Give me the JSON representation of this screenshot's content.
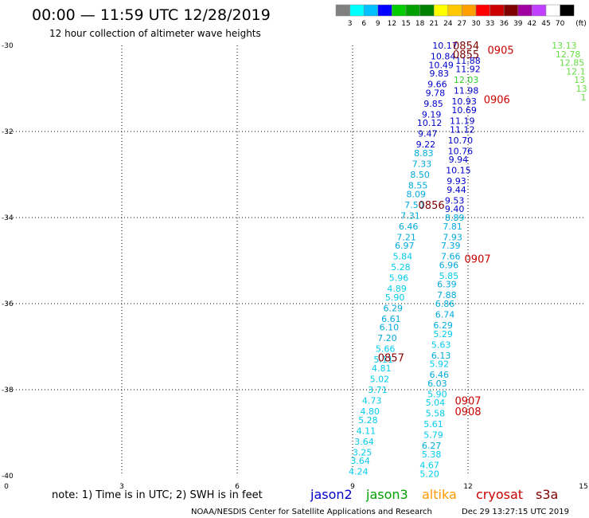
{
  "header": {
    "title": "00:00 — 11:59 UTC 12/28/2019",
    "subtitle": "12 hour collection of altimeter wave heights"
  },
  "colorbar": {
    "units": "(ft)",
    "labels": [
      "3",
      "6",
      "9",
      "12",
      "15",
      "18",
      "21",
      "24",
      "27",
      "30",
      "33",
      "36",
      "39",
      "42",
      "45",
      "70"
    ],
    "colors": [
      "#808080",
      "#00ffff",
      "#00bfff",
      "#0000ff",
      "#00cc00",
      "#00a000",
      "#008000",
      "#ffff00",
      "#ffc800",
      "#ffa000",
      "#ff0000",
      "#cc0000",
      "#800000",
      "#a000a0",
      "#c040ff",
      "#ffffff",
      "#000000"
    ]
  },
  "footer": {
    "note": "note: 1) Time is in UTC; 2) SWH is in feet",
    "credit": "NOAA/NESDIS Center for Satellite Applications and Research",
    "timestamp": "Dec 29 13:27:15 UTC 2019",
    "legend": [
      {
        "name": "jason2",
        "color": "#0000cc"
      },
      {
        "name": "jason3",
        "color": "#00a000"
      },
      {
        "name": "altika",
        "color": "#ff9900"
      },
      {
        "name": "cryosat",
        "color": "#cc0000"
      },
      {
        "name": "s3a",
        "color": "#800000"
      }
    ]
  },
  "chart_data": {
    "type": "scatter",
    "xlim": [
      0,
      15
    ],
    "ylim": [
      -40,
      -30
    ],
    "xticks": [
      "0",
      "3",
      "6",
      "9",
      "12",
      "15"
    ],
    "yticks": [
      "-30",
      "-32",
      "-34",
      "-36",
      "-38",
      "-40"
    ],
    "grid": true,
    "series": [
      {
        "name": "track-west",
        "points": [
          {
            "x": 11.4,
            "y": -30.0,
            "v": "10.17",
            "c": "#0000cc"
          },
          {
            "x": 11.35,
            "y": -30.25,
            "v": "10.84",
            "c": "#0000cc"
          },
          {
            "x": 11.3,
            "y": -30.45,
            "v": "10.49",
            "c": "#0000cc"
          },
          {
            "x": 11.25,
            "y": -30.65,
            "v": "9.83",
            "c": "#0000cc"
          },
          {
            "x": 11.2,
            "y": -30.9,
            "v": "9.66",
            "c": "#0000cc"
          },
          {
            "x": 11.15,
            "y": -31.1,
            "v": "9.78",
            "c": "#0000cc"
          },
          {
            "x": 11.1,
            "y": -31.35,
            "v": "9.85",
            "c": "#0000cc"
          },
          {
            "x": 11.05,
            "y": -31.6,
            "v": "9.19",
            "c": "#0000cc"
          },
          {
            "x": 11.0,
            "y": -31.8,
            "v": "10.12",
            "c": "#0000cc"
          },
          {
            "x": 10.95,
            "y": -32.05,
            "v": "9.47",
            "c": "#0000cc"
          },
          {
            "x": 10.9,
            "y": -32.3,
            "v": "9.22",
            "c": "#0000cc"
          },
          {
            "x": 10.85,
            "y": -32.5,
            "v": "8.83",
            "c": "#00aadd"
          },
          {
            "x": 10.8,
            "y": -32.75,
            "v": "7.33",
            "c": "#00aadd"
          },
          {
            "x": 10.75,
            "y": -33.0,
            "v": "8.50",
            "c": "#00aadd"
          },
          {
            "x": 10.7,
            "y": -33.25,
            "v": "8.55",
            "c": "#00aadd"
          },
          {
            "x": 10.65,
            "y": -33.45,
            "v": "8.09",
            "c": "#00aadd"
          },
          {
            "x": 10.6,
            "y": -33.7,
            "v": "7.50",
            "c": "#00aadd"
          },
          {
            "x": 10.5,
            "y": -33.95,
            "v": "7.31",
            "c": "#00aadd"
          },
          {
            "x": 10.45,
            "y": -34.2,
            "v": "6.46",
            "c": "#00aadd"
          },
          {
            "x": 10.4,
            "y": -34.45,
            "v": "7.21",
            "c": "#00aadd"
          },
          {
            "x": 10.35,
            "y": -34.65,
            "v": "6.97",
            "c": "#00aadd"
          },
          {
            "x": 10.3,
            "y": -34.9,
            "v": "5.84",
            "c": "#00ccee"
          },
          {
            "x": 10.25,
            "y": -35.15,
            "v": "5.28",
            "c": "#00ccee"
          },
          {
            "x": 10.2,
            "y": -35.4,
            "v": "5.96",
            "c": "#00ccee"
          },
          {
            "x": 10.15,
            "y": -35.65,
            "v": "4.89",
            "c": "#00ccee"
          },
          {
            "x": 10.1,
            "y": -35.85,
            "v": "5.90",
            "c": "#00ccee"
          },
          {
            "x": 10.05,
            "y": -36.1,
            "v": "6.29",
            "c": "#00aadd"
          },
          {
            "x": 10.0,
            "y": -36.35,
            "v": "6.61",
            "c": "#00aadd"
          },
          {
            "x": 9.95,
            "y": -36.55,
            "v": "6.10",
            "c": "#00aadd"
          },
          {
            "x": 9.9,
            "y": -36.8,
            "v": "7.20",
            "c": "#00aadd"
          },
          {
            "x": 9.85,
            "y": -37.05,
            "v": "5.66",
            "c": "#00ccee"
          },
          {
            "x": 9.8,
            "y": -37.3,
            "v": "5.11",
            "c": "#00ccee"
          },
          {
            "x": 9.75,
            "y": -37.5,
            "v": "4.81",
            "c": "#00ccee"
          },
          {
            "x": 9.7,
            "y": -37.75,
            "v": "5.02",
            "c": "#00ccee"
          },
          {
            "x": 9.65,
            "y": -38.0,
            "v": "3.71",
            "c": "#00ccee"
          },
          {
            "x": 9.5,
            "y": -38.25,
            "v": "4.73",
            "c": "#00ccee"
          },
          {
            "x": 9.45,
            "y": -38.5,
            "v": "4.80",
            "c": "#00ccee"
          },
          {
            "x": 9.4,
            "y": -38.7,
            "v": "5.28",
            "c": "#00ccee"
          },
          {
            "x": 9.35,
            "y": -38.95,
            "v": "4.11",
            "c": "#00ccee"
          },
          {
            "x": 9.3,
            "y": -39.2,
            "v": "3.64",
            "c": "#00ccee"
          },
          {
            "x": 9.25,
            "y": -39.45,
            "v": "3.25",
            "c": "#00ccee"
          },
          {
            "x": 9.2,
            "y": -39.65,
            "v": "3.64",
            "c": "#00ccee"
          },
          {
            "x": 9.15,
            "y": -39.9,
            "v": "4.24",
            "c": "#00ccee"
          }
        ]
      },
      {
        "name": "track-east",
        "points": [
          {
            "x": 12.0,
            "y": -30.35,
            "v": "11.88",
            "c": "#0000cc"
          },
          {
            "x": 12.0,
            "y": -30.55,
            "v": "11.92",
            "c": "#0000cc"
          },
          {
            "x": 11.95,
            "y": -30.8,
            "v": "12.03",
            "c": "#33cc33"
          },
          {
            "x": 11.95,
            "y": -31.05,
            "v": "11.98",
            "c": "#0000cc"
          },
          {
            "x": 11.9,
            "y": -31.3,
            "v": "10.93",
            "c": "#0000cc"
          },
          {
            "x": 11.9,
            "y": -31.5,
            "v": "10.69",
            "c": "#0000cc"
          },
          {
            "x": 11.85,
            "y": -31.75,
            "v": "11.19",
            "c": "#0000cc"
          },
          {
            "x": 11.85,
            "y": -31.95,
            "v": "11.12",
            "c": "#0000cc"
          },
          {
            "x": 11.8,
            "y": -32.2,
            "v": "10.70",
            "c": "#0000cc"
          },
          {
            "x": 11.8,
            "y": -32.45,
            "v": "10.76",
            "c": "#0000cc"
          },
          {
            "x": 11.75,
            "y": -32.65,
            "v": "9.94",
            "c": "#0000cc"
          },
          {
            "x": 11.75,
            "y": -32.9,
            "v": "10.15",
            "c": "#0000cc"
          },
          {
            "x": 11.7,
            "y": -33.15,
            "v": "9.93",
            "c": "#0000cc"
          },
          {
            "x": 11.7,
            "y": -33.35,
            "v": "9.44",
            "c": "#0000cc"
          },
          {
            "x": 11.65,
            "y": -33.6,
            "v": "9.53",
            "c": "#0000cc"
          },
          {
            "x": 11.65,
            "y": -33.8,
            "v": "9.40",
            "c": "#0000cc"
          },
          {
            "x": 11.65,
            "y": -34.0,
            "v": "8.89",
            "c": "#00aadd"
          },
          {
            "x": 11.6,
            "y": -34.2,
            "v": "7.81",
            "c": "#00aadd"
          },
          {
            "x": 11.6,
            "y": -34.45,
            "v": "7.93",
            "c": "#00aadd"
          },
          {
            "x": 11.55,
            "y": -34.65,
            "v": "7.39",
            "c": "#00aadd"
          },
          {
            "x": 11.55,
            "y": -34.9,
            "v": "7.66",
            "c": "#00aadd"
          },
          {
            "x": 11.5,
            "y": -35.1,
            "v": "6.96",
            "c": "#00aadd"
          },
          {
            "x": 11.5,
            "y": -35.35,
            "v": "5.85",
            "c": "#00ccee"
          },
          {
            "x": 11.45,
            "y": -35.55,
            "v": "6.39",
            "c": "#00aadd"
          },
          {
            "x": 11.45,
            "y": -35.8,
            "v": "7.88",
            "c": "#00aadd"
          },
          {
            "x": 11.4,
            "y": -36.0,
            "v": "6.86",
            "c": "#00aadd"
          },
          {
            "x": 11.4,
            "y": -36.25,
            "v": "6.74",
            "c": "#00aadd"
          },
          {
            "x": 11.35,
            "y": -36.5,
            "v": "6.29",
            "c": "#00aadd"
          },
          {
            "x": 11.35,
            "y": -36.7,
            "v": "5.29",
            "c": "#00ccee"
          },
          {
            "x": 11.3,
            "y": -36.95,
            "v": "5.63",
            "c": "#00ccee"
          },
          {
            "x": 11.3,
            "y": -37.2,
            "v": "6.13",
            "c": "#00aadd"
          },
          {
            "x": 11.25,
            "y": -37.4,
            "v": "5.92",
            "c": "#00ccee"
          },
          {
            "x": 11.25,
            "y": -37.65,
            "v": "6.46",
            "c": "#00aadd"
          },
          {
            "x": 11.2,
            "y": -37.85,
            "v": "6.03",
            "c": "#00aadd"
          },
          {
            "x": 11.2,
            "y": -38.1,
            "v": "5.90",
            "c": "#00ccee"
          },
          {
            "x": 11.15,
            "y": -38.3,
            "v": "5.04",
            "c": "#00ccee"
          },
          {
            "x": 11.15,
            "y": -38.55,
            "v": "5.58",
            "c": "#00ccee"
          },
          {
            "x": 11.1,
            "y": -38.8,
            "v": "5.61",
            "c": "#00ccee"
          },
          {
            "x": 11.1,
            "y": -39.05,
            "v": "5.79",
            "c": "#00ccee"
          },
          {
            "x": 11.05,
            "y": -39.3,
            "v": "6.27",
            "c": "#00aadd"
          },
          {
            "x": 11.05,
            "y": -39.5,
            "v": "5.38",
            "c": "#00ccee"
          },
          {
            "x": 11.0,
            "y": -39.75,
            "v": "4.67",
            "c": "#00ccee"
          },
          {
            "x": 11.0,
            "y": -39.95,
            "v": "5.20",
            "c": "#00ccee"
          }
        ]
      },
      {
        "name": "track-far-east",
        "points": [
          {
            "x": 14.5,
            "y": -30.0,
            "v": "13.13",
            "c": "#66dd44"
          },
          {
            "x": 14.6,
            "y": -30.2,
            "v": "12.78",
            "c": "#66dd44"
          },
          {
            "x": 14.7,
            "y": -30.4,
            "v": "12.85",
            "c": "#66dd44"
          },
          {
            "x": 14.8,
            "y": -30.6,
            "v": "12.1",
            "c": "#66dd44"
          },
          {
            "x": 14.9,
            "y": -30.8,
            "v": "13",
            "c": "#66dd44"
          },
          {
            "x": 14.95,
            "y": -31.0,
            "v": "13",
            "c": "#66dd44"
          },
          {
            "x": 15.0,
            "y": -31.2,
            "v": "1",
            "c": "#66dd44"
          }
        ]
      }
    ],
    "time_labels": [
      {
        "x": 11.95,
        "y": -30.0,
        "text": "0854",
        "c": "#800000"
      },
      {
        "x": 11.95,
        "y": -30.2,
        "text": "0855",
        "c": "#800000"
      },
      {
        "x": 12.85,
        "y": -30.1,
        "text": "0905",
        "c": "#cc0000"
      },
      {
        "x": 12.75,
        "y": -31.25,
        "text": "0906",
        "c": "#cc0000"
      },
      {
        "x": 11.05,
        "y": -33.7,
        "text": "0856",
        "c": "#800000"
      },
      {
        "x": 12.25,
        "y": -34.95,
        "text": "0907",
        "c": "#cc0000"
      },
      {
        "x": 10.0,
        "y": -37.25,
        "text": "0857",
        "c": "#800000"
      },
      {
        "x": 12.0,
        "y": -38.25,
        "text": "0907",
        "c": "#cc0000"
      },
      {
        "x": 12.0,
        "y": -38.5,
        "text": "0908",
        "c": "#cc0000"
      }
    ]
  }
}
